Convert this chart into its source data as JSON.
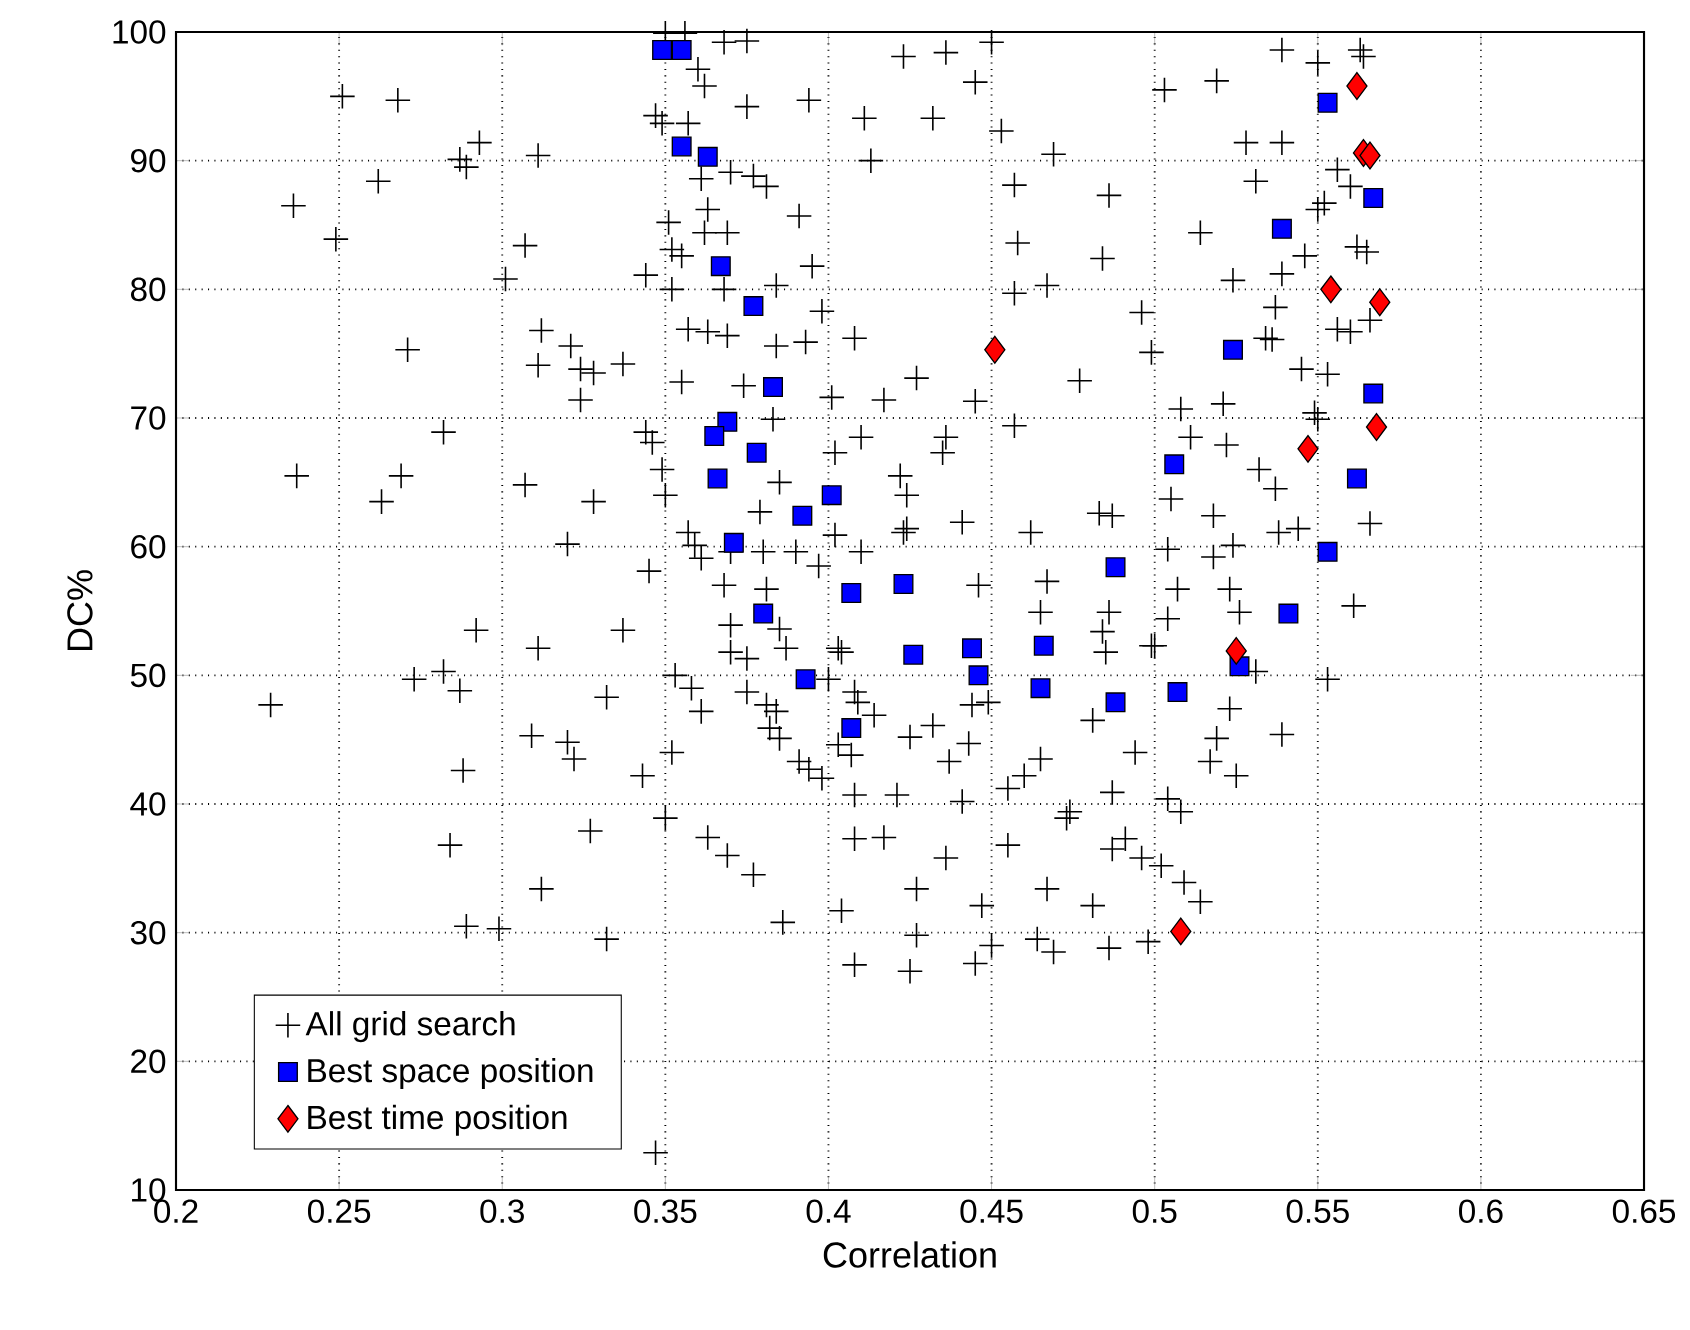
{
  "chart_data": {
    "type": "scatter",
    "xlabel": "Correlation",
    "ylabel": "DC%",
    "xlim": [
      0.2,
      0.65
    ],
    "ylim": [
      10,
      100
    ],
    "xticks": [
      0.2,
      0.25,
      0.3,
      0.35,
      0.4,
      0.45,
      0.5,
      0.55,
      0.6,
      0.65
    ],
    "yticks": [
      10,
      20,
      30,
      40,
      50,
      60,
      70,
      80,
      90,
      100
    ],
    "grid": true,
    "legend": "bottom left",
    "series": [
      {
        "name": "All grid search",
        "color": "#000000",
        "marker": "cross",
        "x": [
          0.251,
          0.268,
          0.236,
          0.262,
          0.249,
          0.287,
          0.289,
          0.293,
          0.311,
          0.307,
          0.301,
          0.271,
          0.312,
          0.311,
          0.321,
          0.324,
          0.328,
          0.337,
          0.324,
          0.282,
          0.237,
          0.269,
          0.263,
          0.307,
          0.328,
          0.32,
          0.345,
          0.292,
          0.311,
          0.337,
          0.35,
          0.356,
          0.36,
          0.362,
          0.368,
          0.375,
          0.375,
          0.394,
          0.411,
          0.413,
          0.423,
          0.347,
          0.349,
          0.357,
          0.361,
          0.37,
          0.377,
          0.381,
          0.363,
          0.391,
          0.351,
          0.362,
          0.369,
          0.352,
          0.355,
          0.344,
          0.352,
          0.384,
          0.395,
          0.398,
          0.368,
          0.357,
          0.363,
          0.369,
          0.384,
          0.393,
          0.408,
          0.355,
          0.374,
          0.401,
          0.417,
          0.344,
          0.346,
          0.383,
          0.402,
          0.41,
          0.349,
          0.35,
          0.385,
          0.379,
          0.422,
          0.424,
          0.357,
          0.359,
          0.361,
          0.368,
          0.37,
          0.38,
          0.39,
          0.397,
          0.402,
          0.41,
          0.423,
          0.381,
          0.37,
          0.385,
          0.403,
          0.436,
          0.45,
          0.445,
          0.432,
          0.453,
          0.469,
          0.457,
          0.486,
          0.458,
          0.484,
          0.457,
          0.467,
          0.496,
          0.499,
          0.427,
          0.445,
          0.477,
          0.457,
          0.436,
          0.435,
          0.503,
          0.519,
          0.539,
          0.55,
          0.563,
          0.564,
          0.528,
          0.539,
          0.531,
          0.556,
          0.56,
          0.55,
          0.552,
          0.514,
          0.546,
          0.562,
          0.565,
          0.524,
          0.539,
          0.537,
          0.534,
          0.536,
          0.556,
          0.56,
          0.545,
          0.553,
          0.549,
          0.55,
          0.566,
          0.508,
          0.521,
          0.511,
          0.522,
          0.532,
          0.537,
          0.566,
          0.538,
          0.544,
          0.505,
          0.518,
          0.524,
          0.518,
          0.504,
          0.561,
          0.507,
          0.523,
          0.504,
          0.526,
          0.486,
          0.484,
          0.499,
          0.441,
          0.462,
          0.424,
          0.446,
          0.467,
          0.465,
          0.483,
          0.487,
          0.553,
          0.531,
          0.523,
          0.539,
          0.519,
          0.517,
          0.525,
          0.494,
          0.481,
          0.485,
          0.5,
          0.449,
          0.444,
          0.443,
          0.432,
          0.425,
          0.437,
          0.465,
          0.46,
          0.455,
          0.441,
          0.421,
          0.474,
          0.473,
          0.487,
          0.504,
          0.508,
          0.455,
          0.436,
          0.491,
          0.487,
          0.496,
          0.502,
          0.509,
          0.514,
          0.427,
          0.447,
          0.467,
          0.481,
          0.427,
          0.45,
          0.445,
          0.464,
          0.469,
          0.486,
          0.498,
          0.425,
          0.229,
          0.273,
          0.282,
          0.287,
          0.288,
          0.284,
          0.312,
          0.309,
          0.32,
          0.322,
          0.332,
          0.343,
          0.352,
          0.327,
          0.35,
          0.353,
          0.358,
          0.361,
          0.363,
          0.369,
          0.377,
          0.386,
          0.404,
          0.408,
          0.408,
          0.417,
          0.408,
          0.289,
          0.299,
          0.332,
          0.347,
          0.37,
          0.375,
          0.387,
          0.404,
          0.375,
          0.381,
          0.384,
          0.382,
          0.385,
          0.391,
          0.394,
          0.398,
          0.4,
          0.408,
          0.409,
          0.414,
          0.403,
          0.407
        ],
        "values": [
          95.0,
          94.7,
          86.5,
          88.4,
          83.9,
          90.1,
          89.5,
          91.4,
          90.4,
          83.4,
          80.8,
          75.3,
          76.8,
          74.1,
          75.6,
          73.8,
          73.5,
          74.2,
          71.4,
          68.9,
          65.5,
          65.5,
          63.5,
          64.8,
          63.5,
          60.2,
          58.1,
          53.5,
          52.1,
          53.5,
          99.9,
          99.9,
          97.1,
          95.8,
          99.2,
          99.3,
          94.2,
          94.7,
          93.3,
          90.0,
          98.1,
          93.5,
          92.9,
          92.9,
          88.6,
          89.1,
          88.8,
          88.0,
          86.2,
          85.7,
          85.2,
          84.4,
          84.4,
          83.1,
          82.6,
          81.1,
          80.0,
          80.3,
          81.8,
          78.3,
          80.0,
          76.9,
          76.7,
          76.4,
          75.6,
          75.9,
          76.2,
          72.8,
          72.5,
          71.6,
          71.4,
          68.9,
          68.1,
          69.9,
          67.3,
          68.5,
          66.0,
          64.0,
          65.0,
          62.7,
          65.5,
          64.0,
          61.1,
          60.1,
          59.1,
          57.0,
          59.6,
          59.6,
          59.6,
          58.5,
          60.9,
          59.6,
          61.1,
          56.7,
          53.9,
          53.6,
          52.1,
          98.4,
          99.2,
          96.1,
          93.3,
          92.3,
          90.5,
          88.1,
          87.3,
          83.6,
          82.4,
          79.7,
          80.3,
          78.2,
          75.1,
          73.1,
          71.3,
          72.9,
          69.4,
          68.5,
          67.3,
          95.5,
          96.2,
          98.6,
          97.6,
          98.6,
          98.1,
          91.4,
          91.4,
          88.4,
          89.3,
          88.0,
          86.2,
          86.7,
          84.4,
          82.6,
          83.3,
          82.9,
          80.7,
          81.2,
          78.6,
          76.2,
          76.1,
          76.9,
          76.7,
          73.8,
          73.4,
          70.4,
          69.9,
          77.6,
          70.7,
          71.1,
          68.5,
          67.9,
          66.0,
          64.5,
          61.8,
          61.1,
          61.4,
          63.7,
          62.4,
          60.1,
          59.2,
          59.8,
          55.4,
          56.7,
          56.7,
          54.4,
          54.9,
          54.9,
          53.4,
          52.3,
          61.9,
          61.1,
          61.4,
          57.0,
          57.3,
          54.9,
          62.6,
          62.4,
          49.7,
          50.3,
          47.4,
          45.4,
          45.1,
          43.3,
          42.2,
          44.0,
          46.5,
          51.8,
          52.3,
          47.9,
          47.7,
          44.7,
          46.1,
          45.2,
          43.3,
          43.5,
          42.2,
          41.2,
          40.2,
          40.7,
          39.4,
          38.9,
          40.9,
          40.4,
          39.4,
          36.8,
          35.8,
          37.3,
          36.5,
          35.8,
          35.2,
          33.9,
          32.4,
          33.4,
          32.1,
          33.4,
          32.1,
          29.8,
          29.0,
          27.6,
          29.5,
          28.5,
          28.8,
          29.3,
          27.0,
          47.7,
          49.7,
          50.3,
          48.8,
          42.6,
          36.8,
          33.4,
          45.3,
          44.8,
          43.5,
          48.3,
          42.2,
          44.0,
          37.9,
          38.9,
          50.0,
          49.0,
          47.2,
          37.4,
          36.0,
          34.5,
          30.8,
          31.7,
          27.5,
          37.3,
          37.4,
          40.7,
          30.5,
          30.3,
          29.5,
          12.9,
          51.8,
          51.3,
          52.1,
          51.8,
          48.7,
          47.7,
          47.2,
          45.9,
          45.1,
          43.3,
          42.7,
          42.0,
          49.7,
          48.7,
          47.9,
          46.9,
          44.6,
          43.8
        ]
      },
      {
        "name": "Best space position",
        "color": "#0000ff",
        "marker": "square",
        "x": [
          0.349,
          0.355,
          0.355,
          0.363,
          0.367,
          0.377,
          0.383,
          0.369,
          0.365,
          0.378,
          0.366,
          0.392,
          0.401,
          0.371,
          0.407,
          0.38,
          0.423,
          0.553,
          0.567,
          0.539,
          0.524,
          0.567,
          0.506,
          0.562,
          0.553,
          0.488,
          0.541,
          0.426,
          0.444,
          0.446,
          0.466,
          0.465,
          0.488,
          0.507,
          0.526,
          0.393,
          0.407
        ],
        "values": [
          98.6,
          98.6,
          91.1,
          90.3,
          81.8,
          78.7,
          72.4,
          69.7,
          68.6,
          67.3,
          65.3,
          62.4,
          64.0,
          60.3,
          56.4,
          54.8,
          57.1,
          94.5,
          87.1,
          84.7,
          75.3,
          71.9,
          66.4,
          65.3,
          59.6,
          58.4,
          54.8,
          51.6,
          52.1,
          50.0,
          52.3,
          49.0,
          47.9,
          48.7,
          50.7,
          49.7,
          45.9
        ]
      },
      {
        "name": "Best time position",
        "color": "#ff0000",
        "marker": "diamond",
        "x": [
          0.562,
          0.564,
          0.566,
          0.554,
          0.569,
          0.451,
          0.547,
          0.568,
          0.525,
          0.508
        ],
        "values": [
          95.8,
          90.6,
          90.4,
          80.0,
          79.0,
          75.3,
          67.6,
          69.3,
          51.9,
          30.1
        ]
      }
    ]
  }
}
